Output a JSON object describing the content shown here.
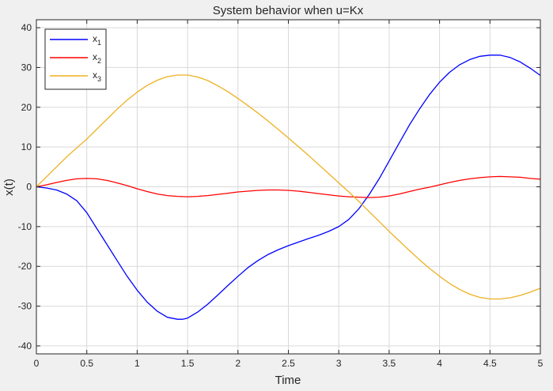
{
  "chart_data": {
    "type": "line",
    "title": "System behavior when u=Kx",
    "xlabel": "Time",
    "ylabel": "x(t)",
    "xlim": [
      0,
      5
    ],
    "ylim": [
      -42,
      42
    ],
    "xticks": [
      0,
      0.5,
      1,
      1.5,
      2,
      2.5,
      3,
      3.5,
      4,
      4.5,
      5
    ],
    "xtick_labels": [
      "0",
      "0.5",
      "1",
      "1.5",
      "2",
      "2.5",
      "3",
      "3.5",
      "4",
      "4.5",
      "5"
    ],
    "yticks": [
      -40,
      -30,
      -20,
      -10,
      0,
      10,
      20,
      30,
      40
    ],
    "ytick_labels": [
      "-40",
      "-30",
      "-20",
      "-10",
      "0",
      "10",
      "20",
      "30",
      "40"
    ],
    "grid": true,
    "legend_position": "top-left",
    "series": [
      {
        "name": "x",
        "name_subscript": "1",
        "color": "#0000ff",
        "x": [
          0,
          0.1,
          0.2,
          0.3,
          0.4,
          0.5,
          0.6,
          0.7,
          0.8,
          0.9,
          1.0,
          1.1,
          1.2,
          1.3,
          1.4,
          1.45,
          1.5,
          1.6,
          1.7,
          1.8,
          1.9,
          2.0,
          2.1,
          2.2,
          2.3,
          2.4,
          2.5,
          2.6,
          2.7,
          2.8,
          2.9,
          3.0,
          3.1,
          3.2,
          3.3,
          3.4,
          3.5,
          3.6,
          3.7,
          3.8,
          3.9,
          4.0,
          4.1,
          4.2,
          4.3,
          4.4,
          4.5,
          4.6,
          4.7,
          4.8,
          4.9,
          5.0
        ],
        "y": [
          0,
          -0.3,
          -0.8,
          -1.8,
          -3.5,
          -6.5,
          -10.5,
          -14.5,
          -18.5,
          -22.5,
          -26,
          -29,
          -31.3,
          -32.8,
          -33.3,
          -33.3,
          -33,
          -31.5,
          -29.5,
          -27.2,
          -24.8,
          -22.5,
          -20.3,
          -18.5,
          -17,
          -15.8,
          -14.8,
          -13.9,
          -13,
          -12.2,
          -11.2,
          -10,
          -8.2,
          -5.5,
          -2,
          2,
          6.5,
          11,
          15.5,
          19.5,
          23.2,
          26.3,
          28.8,
          30.7,
          32,
          32.8,
          33.1,
          33.1,
          32.5,
          31.4,
          29.8,
          28
        ]
      },
      {
        "name": "x",
        "name_subscript": "2",
        "color": "#ff0000",
        "x": [
          0,
          0.1,
          0.2,
          0.3,
          0.4,
          0.5,
          0.6,
          0.7,
          0.8,
          0.9,
          1.0,
          1.1,
          1.2,
          1.3,
          1.4,
          1.5,
          1.6,
          1.7,
          1.8,
          1.9,
          2.0,
          2.1,
          2.2,
          2.3,
          2.4,
          2.5,
          2.6,
          2.7,
          2.8,
          2.9,
          3.0,
          3.1,
          3.2,
          3.3,
          3.4,
          3.5,
          3.6,
          3.7,
          3.8,
          3.9,
          4.0,
          4.1,
          4.2,
          4.3,
          4.4,
          4.5,
          4.6,
          4.7,
          4.8,
          4.9,
          5.0
        ],
        "y": [
          0,
          0.5,
          1.1,
          1.6,
          2.0,
          2.1,
          2.0,
          1.6,
          1.0,
          0.3,
          -0.5,
          -1.2,
          -1.8,
          -2.2,
          -2.4,
          -2.5,
          -2.4,
          -2.2,
          -1.9,
          -1.6,
          -1.3,
          -1.1,
          -0.9,
          -0.8,
          -0.8,
          -0.9,
          -1.1,
          -1.4,
          -1.7,
          -2.0,
          -2.3,
          -2.5,
          -2.6,
          -2.7,
          -2.6,
          -2.3,
          -1.8,
          -1.2,
          -0.6,
          -0.1,
          0.5,
          1.1,
          1.6,
          2.0,
          2.3,
          2.5,
          2.6,
          2.5,
          2.4,
          2.1,
          1.9
        ]
      },
      {
        "name": "x",
        "name_subscript": "3",
        "color": "#edb120",
        "x": [
          0,
          0.1,
          0.2,
          0.3,
          0.4,
          0.5,
          0.6,
          0.7,
          0.8,
          0.9,
          1.0,
          1.1,
          1.2,
          1.3,
          1.4,
          1.5,
          1.6,
          1.7,
          1.8,
          1.9,
          2.0,
          2.1,
          2.2,
          2.3,
          2.4,
          2.5,
          2.6,
          2.7,
          2.8,
          2.9,
          3.0,
          3.1,
          3.2,
          3.3,
          3.4,
          3.5,
          3.6,
          3.7,
          3.8,
          3.9,
          4.0,
          4.1,
          4.2,
          4.3,
          4.4,
          4.5,
          4.6,
          4.7,
          4.8,
          4.9,
          5.0
        ],
        "y": [
          0,
          2.5,
          5,
          7.5,
          9.8,
          12,
          14.5,
          17,
          19.5,
          21.8,
          23.8,
          25.5,
          26.8,
          27.7,
          28.1,
          28.1,
          27.6,
          26.7,
          25.4,
          23.9,
          22.2,
          20.4,
          18.5,
          16.5,
          14.4,
          12.3,
          10.1,
          7.9,
          5.6,
          3.3,
          1.0,
          -1.3,
          -3.7,
          -6.2,
          -8.7,
          -11.2,
          -13.6,
          -16,
          -18.3,
          -20.5,
          -22.5,
          -24.3,
          -25.8,
          -27,
          -27.8,
          -28.2,
          -28.2,
          -27.9,
          -27.3,
          -26.5,
          -25.5
        ]
      }
    ]
  }
}
